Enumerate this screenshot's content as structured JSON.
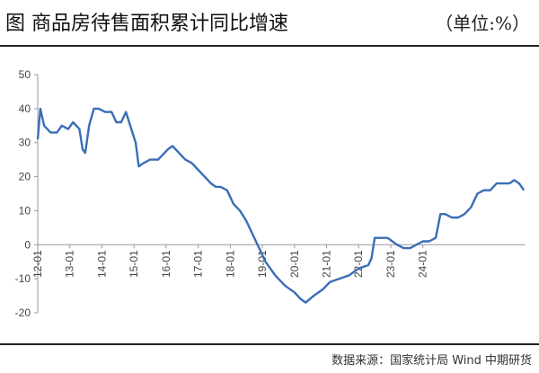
{
  "header": {
    "title": "图 商品房待售面积累计同比增速",
    "unit": "（单位:%）"
  },
  "source": "数据来源：国家统计局 Wind 中期研货",
  "chart_data": {
    "type": "line",
    "series": [
      {
        "name": "",
        "color": "#3a6db8",
        "values": [
          [
            2012.0,
            31
          ],
          [
            2012.08,
            40
          ],
          [
            2012.2,
            35
          ],
          [
            2012.4,
            33
          ],
          [
            2012.6,
            33
          ],
          [
            2012.75,
            35
          ],
          [
            2012.95,
            34
          ],
          [
            2013.1,
            36
          ],
          [
            2013.3,
            34
          ],
          [
            2013.4,
            28
          ],
          [
            2013.48,
            27
          ],
          [
            2013.6,
            35
          ],
          [
            2013.75,
            40
          ],
          [
            2013.9,
            40
          ],
          [
            2014.1,
            39
          ],
          [
            2014.3,
            39
          ],
          [
            2014.45,
            36
          ],
          [
            2014.6,
            36
          ],
          [
            2014.75,
            39
          ],
          [
            2014.85,
            36
          ],
          [
            2015.05,
            30
          ],
          [
            2015.15,
            23
          ],
          [
            2015.3,
            24
          ],
          [
            2015.5,
            25
          ],
          [
            2015.75,
            25
          ],
          [
            2016.05,
            28
          ],
          [
            2016.2,
            29
          ],
          [
            2016.4,
            27
          ],
          [
            2016.6,
            25
          ],
          [
            2016.8,
            24
          ],
          [
            2017.0,
            22
          ],
          [
            2017.2,
            20
          ],
          [
            2017.4,
            18
          ],
          [
            2017.55,
            17
          ],
          [
            2017.7,
            17
          ],
          [
            2017.9,
            16
          ],
          [
            2018.1,
            12
          ],
          [
            2018.3,
            10
          ],
          [
            2018.5,
            7
          ],
          [
            2018.7,
            3
          ],
          [
            2018.9,
            -1
          ],
          [
            2019.1,
            -5
          ],
          [
            2019.4,
            -9
          ],
          [
            2019.7,
            -12
          ],
          [
            2020.0,
            -14
          ],
          [
            2020.2,
            -16
          ],
          [
            2020.35,
            -17
          ],
          [
            2020.6,
            -15
          ],
          [
            2020.9,
            -13
          ],
          [
            2021.1,
            -11
          ],
          [
            2021.4,
            -10
          ],
          [
            2021.7,
            -9
          ],
          [
            2022.0,
            -7
          ],
          [
            2022.3,
            -6
          ],
          [
            2022.4,
            -4
          ],
          [
            2022.5,
            2
          ],
          [
            2022.7,
            2
          ],
          [
            2022.9,
            2
          ],
          [
            2023.05,
            1
          ],
          [
            2023.2,
            0
          ],
          [
            2023.4,
            -1
          ],
          [
            2023.6,
            -1
          ],
          [
            2023.8,
            0
          ],
          [
            2024.0,
            1
          ],
          [
            2024.2,
            1
          ],
          [
            2024.4,
            2
          ],
          [
            2024.55,
            9
          ],
          [
            2024.7,
            9
          ],
          [
            2024.9,
            8
          ],
          [
            2025.1,
            8
          ],
          [
            2025.3,
            9
          ],
          [
            2025.5,
            11
          ],
          [
            2025.7,
            15
          ],
          [
            2025.9,
            16
          ],
          [
            2026.1,
            16
          ],
          [
            2026.3,
            18
          ],
          [
            2026.5,
            18
          ],
          [
            2026.7,
            18
          ],
          [
            2026.85,
            19
          ],
          [
            2027.0,
            18
          ],
          [
            2027.15,
            16
          ]
        ]
      }
    ],
    "x_ticks": [
      {
        "label": "12-01",
        "value": 2012
      },
      {
        "label": "13-01",
        "value": 2013
      },
      {
        "label": "14-01",
        "value": 2014
      },
      {
        "label": "15-01",
        "value": 2015
      },
      {
        "label": "16-01",
        "value": 2016
      },
      {
        "label": "17-01",
        "value": 2017
      },
      {
        "label": "18-01",
        "value": 2018
      },
      {
        "label": "19-01",
        "value": 2019
      },
      {
        "label": "20-01",
        "value": 2020
      },
      {
        "label": "21-01",
        "value": 2021
      },
      {
        "label": "22-01",
        "value": 2022
      },
      {
        "label": "23-01",
        "value": 2023
      },
      {
        "label": "24-01",
        "value": 2024
      }
    ],
    "y_ticks": [
      50,
      40,
      30,
      20,
      10,
      0,
      -10,
      -20
    ],
    "ylim": [
      -20,
      50
    ],
    "xlim": [
      2012,
      2027.2
    ],
    "grid": false
  }
}
